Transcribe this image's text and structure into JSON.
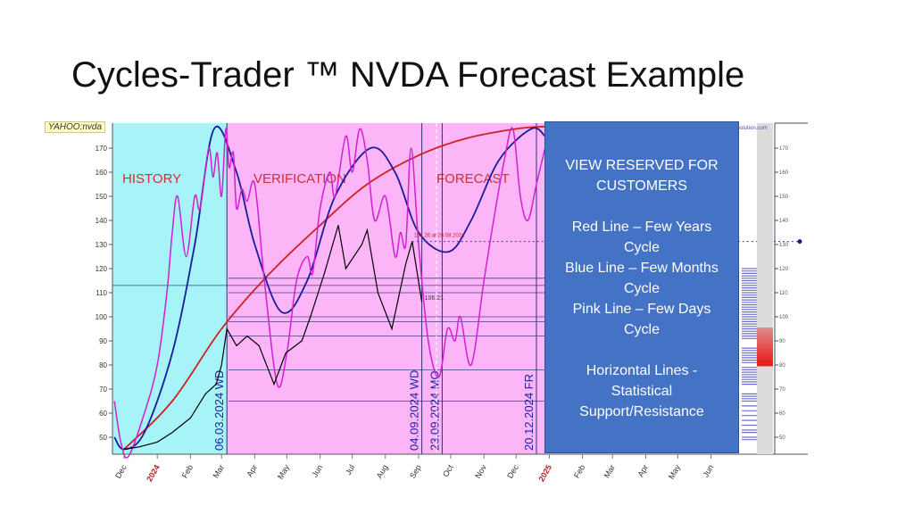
{
  "slide": {
    "title": "Cycles-Trader ™ NVDA Forecast Example"
  },
  "overlay": {
    "lines": [
      "VIEW RESERVED FOR",
      "CUSTOMERS",
      "",
      "Red Line – Few Years",
      "Cycle",
      "Blue Line – Few Months",
      "Cycle",
      "Pink Line – Few Days",
      "Cycle",
      "",
      "Horizontal Lines -",
      "Statistical",
      "Support/Resistance"
    ],
    "color": "#4472c4"
  },
  "chart_data": {
    "type": "line",
    "ticker": "YAHOO:nvda",
    "watermark": "timingsolution.com",
    "ylim": [
      43,
      180
    ],
    "yticks": [
      50,
      60,
      70,
      80,
      90,
      100,
      110,
      120,
      130,
      140,
      150,
      160,
      170
    ],
    "xlim": [
      "2023-11-20",
      "2025-07-05"
    ],
    "xticks": [
      {
        "date": "2023-12-01",
        "label": "Dec"
      },
      {
        "date": "2024-01-01",
        "label": "2024",
        "year": true
      },
      {
        "date": "2024-02-01",
        "label": "Feb"
      },
      {
        "date": "2024-03-01",
        "label": "Mar"
      },
      {
        "date": "2024-04-01",
        "label": "Apr"
      },
      {
        "date": "2024-05-01",
        "label": "May"
      },
      {
        "date": "2024-06-01",
        "label": "Jun"
      },
      {
        "date": "2024-07-01",
        "label": "Jul"
      },
      {
        "date": "2024-08-01",
        "label": "Aug"
      },
      {
        "date": "2024-09-01",
        "label": "Sep"
      },
      {
        "date": "2024-10-01",
        "label": "Oct"
      },
      {
        "date": "2024-11-01",
        "label": "Nov"
      },
      {
        "date": "2024-12-01",
        "label": "Dec"
      },
      {
        "date": "2025-01-01",
        "label": "2025",
        "year": true
      },
      {
        "date": "2025-02-01",
        "label": "Feb"
      },
      {
        "date": "2025-03-01",
        "label": "Mar"
      },
      {
        "date": "2025-04-01",
        "label": "Apr"
      },
      {
        "date": "2025-05-01",
        "label": "May"
      },
      {
        "date": "2025-06-01",
        "label": "Jun"
      }
    ],
    "regions": [
      {
        "label": "HISTORY",
        "from": "2023-11-20",
        "to": "2024-03-06",
        "color": "#a6f4f8"
      },
      {
        "label": "VERIFICATION",
        "from": "2024-03-06",
        "to": "2024-09-04",
        "color": "#fcb6f8"
      },
      {
        "label": "FORECAST",
        "from": "2024-09-04",
        "to": "2024-12-28",
        "color": "#fcb6f8"
      }
    ],
    "vlines": [
      {
        "date": "2024-03-06",
        "label": "06.03.2024 WD"
      },
      {
        "date": "2024-09-04",
        "label": "04.09.2024 WD"
      },
      {
        "date": "2024-09-23",
        "label": "23.09.2024 MO"
      },
      {
        "date": "2024-12-20",
        "label": "20.12.2024 FR"
      }
    ],
    "hlines": [
      116,
      113,
      110,
      100,
      98,
      92,
      78,
      65
    ],
    "annotations": [
      {
        "text": "131.26 at 26.08.2024",
        "date": "2024-08-26",
        "value": 131.26
      },
      {
        "text": "106.21",
        "date": "2024-09-04",
        "value": 106.21
      }
    ],
    "series": [
      {
        "key": "price",
        "color": "#000000",
        "points": [
          [
            "2023-12-01",
            45
          ],
          [
            "2023-12-15",
            46
          ],
          [
            "2024-01-01",
            48
          ],
          [
            "2024-01-15",
            52
          ],
          [
            "2024-02-01",
            58
          ],
          [
            "2024-02-15",
            68
          ],
          [
            "2024-02-25",
            72
          ],
          [
            "2024-03-01",
            80
          ],
          [
            "2024-03-06",
            95
          ],
          [
            "2024-03-15",
            88
          ],
          [
            "2024-03-25",
            92
          ],
          [
            "2024-04-05",
            88
          ],
          [
            "2024-04-19",
            72
          ],
          [
            "2024-04-30",
            85
          ],
          [
            "2024-05-15",
            90
          ],
          [
            "2024-05-23",
            100
          ],
          [
            "2024-06-05",
            118
          ],
          [
            "2024-06-18",
            138
          ],
          [
            "2024-06-25",
            120
          ],
          [
            "2024-07-10",
            130
          ],
          [
            "2024-07-15",
            136
          ],
          [
            "2024-07-25",
            110
          ],
          [
            "2024-08-07",
            95
          ],
          [
            "2024-08-20",
            122
          ],
          [
            "2024-08-26",
            131.26
          ],
          [
            "2024-09-04",
            106.21
          ]
        ]
      },
      {
        "key": "few-years-cycle",
        "color": "#d02020",
        "points": [
          [
            "2023-12-01",
            45
          ],
          [
            "2024-01-15",
            65
          ],
          [
            "2024-03-01",
            95
          ],
          [
            "2024-04-15",
            118
          ],
          [
            "2024-06-01",
            138
          ],
          [
            "2024-07-15",
            155
          ],
          [
            "2024-09-01",
            167
          ],
          [
            "2024-10-15",
            174
          ],
          [
            "2024-12-01",
            178
          ],
          [
            "2024-12-28",
            179
          ]
        ]
      },
      {
        "key": "few-months-cycle",
        "color": "#1a1a9a",
        "points": [
          [
            "2023-11-22",
            50
          ],
          [
            "2023-12-01",
            45
          ],
          [
            "2023-12-20",
            52
          ],
          [
            "2024-01-15",
            85
          ],
          [
            "2024-02-05",
            130
          ],
          [
            "2024-02-23",
            178
          ],
          [
            "2024-03-15",
            160
          ],
          [
            "2024-04-01",
            130
          ],
          [
            "2024-04-26",
            102
          ],
          [
            "2024-05-20",
            115
          ],
          [
            "2024-06-15",
            150
          ],
          [
            "2024-07-18",
            170
          ],
          [
            "2024-08-10",
            160
          ],
          [
            "2024-09-01",
            135
          ],
          [
            "2024-09-29",
            127
          ],
          [
            "2024-10-20",
            140
          ],
          [
            "2024-11-15",
            165
          ],
          [
            "2024-12-15",
            178
          ],
          [
            "2024-12-28",
            175
          ]
        ]
      },
      {
        "key": "few-days-cycle",
        "color": "#d020d0",
        "points": [
          [
            "2023-11-22",
            65
          ],
          [
            "2023-11-28",
            48
          ],
          [
            "2023-12-05",
            42
          ],
          [
            "2023-12-20",
            60
          ],
          [
            "2024-01-01",
            80
          ],
          [
            "2024-01-10",
            110
          ],
          [
            "2024-01-15",
            135
          ],
          [
            "2024-01-20",
            150
          ],
          [
            "2024-01-28",
            125
          ],
          [
            "2024-02-05",
            150
          ],
          [
            "2024-02-10",
            145
          ],
          [
            "2024-02-18",
            170
          ],
          [
            "2024-02-22",
            158
          ],
          [
            "2024-02-26",
            168
          ],
          [
            "2024-03-01",
            150
          ],
          [
            "2024-03-05",
            178
          ],
          [
            "2024-03-08",
            162
          ],
          [
            "2024-03-12",
            168
          ],
          [
            "2024-03-15",
            145
          ],
          [
            "2024-03-20",
            153
          ],
          [
            "2024-03-25",
            148
          ],
          [
            "2024-04-01",
            155
          ],
          [
            "2024-04-10",
            115
          ],
          [
            "2024-04-22",
            72
          ],
          [
            "2024-05-01",
            85
          ],
          [
            "2024-05-10",
            115
          ],
          [
            "2024-05-20",
            125
          ],
          [
            "2024-05-25",
            118
          ],
          [
            "2024-06-01",
            145
          ],
          [
            "2024-06-10",
            160
          ],
          [
            "2024-06-15",
            150
          ],
          [
            "2024-06-25",
            175
          ],
          [
            "2024-07-01",
            160
          ],
          [
            "2024-07-08",
            178
          ],
          [
            "2024-07-15",
            165
          ],
          [
            "2024-07-22",
            140
          ],
          [
            "2024-08-01",
            150
          ],
          [
            "2024-08-10",
            125
          ],
          [
            "2024-08-15",
            135
          ],
          [
            "2024-08-20",
            130
          ],
          [
            "2024-08-25",
            170
          ],
          [
            "2024-09-01",
            130
          ],
          [
            "2024-09-10",
            90
          ],
          [
            "2024-09-20",
            75
          ],
          [
            "2024-09-28",
            95
          ],
          [
            "2024-10-05",
            90
          ],
          [
            "2024-10-10",
            100
          ],
          [
            "2024-10-20",
            80
          ],
          [
            "2024-11-01",
            115
          ],
          [
            "2024-11-10",
            140
          ],
          [
            "2024-11-20",
            165
          ],
          [
            "2024-11-28",
            178
          ],
          [
            "2024-12-05",
            150
          ],
          [
            "2024-12-12",
            140
          ],
          [
            "2024-12-20",
            155
          ],
          [
            "2024-12-28",
            170
          ]
        ]
      }
    ],
    "histogram": {
      "blue_levels": [
        120,
        119,
        118,
        117,
        116,
        115,
        114,
        113,
        112,
        111,
        110,
        109,
        108,
        107,
        106,
        105,
        104,
        103,
        102,
        101,
        100,
        99,
        98,
        97,
        96,
        95,
        94,
        93,
        92,
        91,
        87,
        86,
        85,
        84,
        83,
        82,
        81,
        79,
        78,
        77,
        76,
        75,
        74,
        73,
        72,
        68,
        67,
        66,
        65,
        63,
        61,
        59,
        57,
        55,
        53,
        52,
        50,
        49
      ],
      "red_levels": [
        95,
        94,
        93,
        92,
        91,
        90,
        89,
        88,
        87,
        86,
        85,
        84,
        83,
        82,
        81,
        80
      ],
      "blue_color": "#4040c0",
      "red_color": "#e81010"
    },
    "right_axis_marker": 131.26
  }
}
